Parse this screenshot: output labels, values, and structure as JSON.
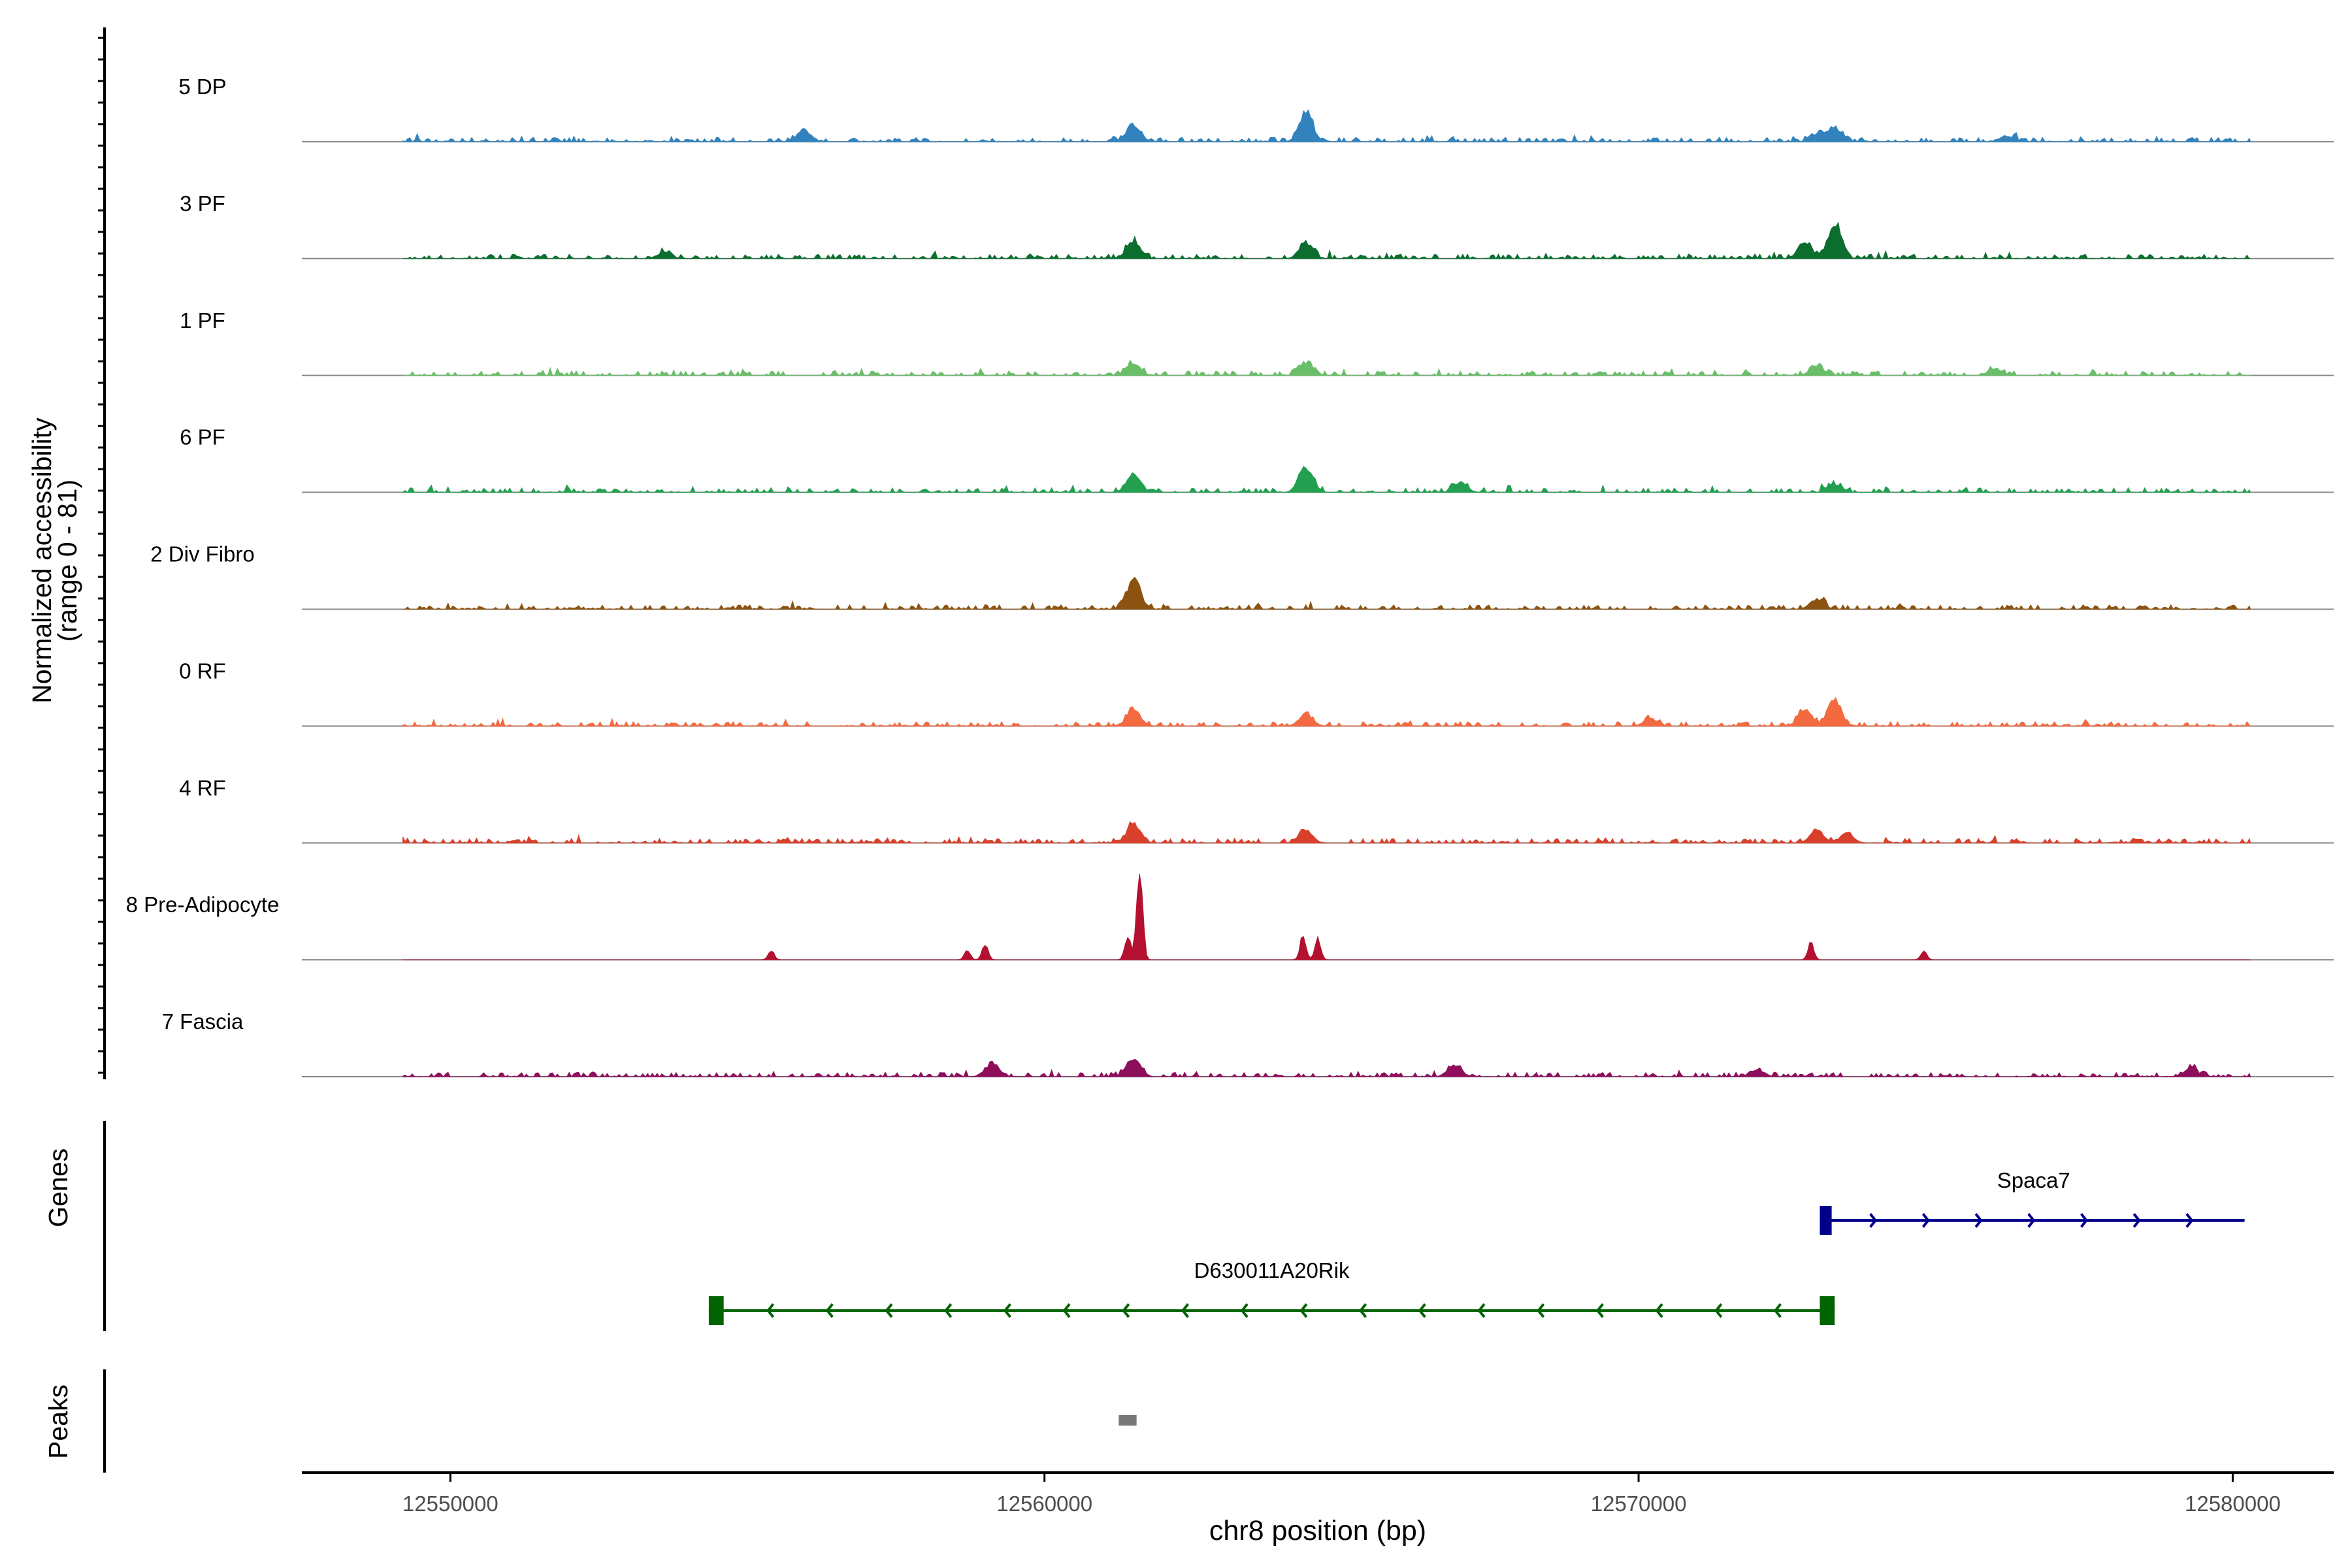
{
  "chart_data": {
    "type": "area",
    "title": "",
    "xlabel": "chr8 position (bp)",
    "ylabel_line1": "Normalized accessibility",
    "ylabel_line2": "(range 0 - 81)",
    "xlim": [
      12547500,
      12581700
    ],
    "ylim": [
      0,
      81
    ],
    "x_ticks": [
      12550000,
      12560000,
      12570000,
      12580000
    ],
    "x_tick_labels": [
      "12550000",
      "12560000",
      "12570000",
      "12580000"
    ],
    "data_range": [
      12549200,
      12580300
    ],
    "tracks": [
      {
        "name": "5 DP",
        "color": "#3182BD",
        "peaks": [
          [
            12555950,
            10
          ],
          [
            12561500,
            15
          ],
          [
            12564400,
            25
          ],
          [
            12573300,
            12
          ],
          [
            12573000,
            6
          ],
          [
            12576200,
            5
          ]
        ]
      },
      {
        "name": "3 PF",
        "color": "#0B6E2E",
        "peaks": [
          [
            12561500,
            15
          ],
          [
            12564400,
            13
          ],
          [
            12572800,
            14
          ],
          [
            12573300,
            30
          ],
          [
            12553600,
            5
          ]
        ]
      },
      {
        "name": "1 PF",
        "color": "#6ABE6A",
        "peaks": [
          [
            12561500,
            11
          ],
          [
            12564400,
            10
          ],
          [
            12573000,
            8
          ],
          [
            12576000,
            6
          ]
        ]
      },
      {
        "name": "6 PF",
        "color": "#22A050",
        "peaks": [
          [
            12561500,
            14
          ],
          [
            12564400,
            21
          ],
          [
            12567000,
            8
          ],
          [
            12573300,
            7
          ]
        ]
      },
      {
        "name": "2 Div Fibro",
        "color": "#8C5310",
        "peaks": [
          [
            12561500,
            26
          ],
          [
            12573000,
            8
          ]
        ]
      },
      {
        "name": "0 RF",
        "color": "#F46A40",
        "peaks": [
          [
            12561500,
            14
          ],
          [
            12564400,
            10
          ],
          [
            12572800,
            14
          ],
          [
            12573300,
            22
          ],
          [
            12570200,
            6
          ]
        ]
      },
      {
        "name": "4 RF",
        "color": "#D8402C",
        "peaks": [
          [
            12561500,
            16
          ],
          [
            12564400,
            10
          ],
          [
            12573000,
            11
          ],
          [
            12573500,
            8
          ]
        ]
      },
      {
        "name": "8 Pre-Adipocyte",
        "color": "#B4102F",
        "peaks": [
          [
            12561600,
            81
          ],
          [
            12561400,
            20
          ],
          [
            12564350,
            20
          ],
          [
            12564600,
            18
          ],
          [
            12559000,
            14
          ],
          [
            12555400,
            8
          ],
          [
            12558700,
            8
          ],
          [
            12572900,
            15
          ],
          [
            12574800,
            8
          ]
        ]
      },
      {
        "name": "7 Fascia",
        "color": "#8E0E5C",
        "peaks": [
          [
            12561500,
            16
          ],
          [
            12559100,
            10
          ],
          [
            12566900,
            10
          ],
          [
            12572000,
            6
          ],
          [
            12579300,
            7
          ]
        ]
      }
    ],
    "genes_label": "Genes",
    "genes": [
      {
        "name": "Spaca7",
        "start": 12573100,
        "end": 12580200,
        "strand": "+",
        "color": "#00008B",
        "exons": [
          [
            12573050,
            12573250
          ]
        ]
      },
      {
        "name": "D630011A20Rik",
        "start": 12554350,
        "end": 12573300,
        "strand": "-",
        "color": "#006400",
        "exons": [
          [
            12554350,
            12554600
          ],
          [
            12573050,
            12573300
          ]
        ]
      }
    ],
    "peaks_label": "Peaks",
    "peak_regions": [
      [
        12561250,
        12561550
      ]
    ],
    "peak_color": "#777777"
  }
}
